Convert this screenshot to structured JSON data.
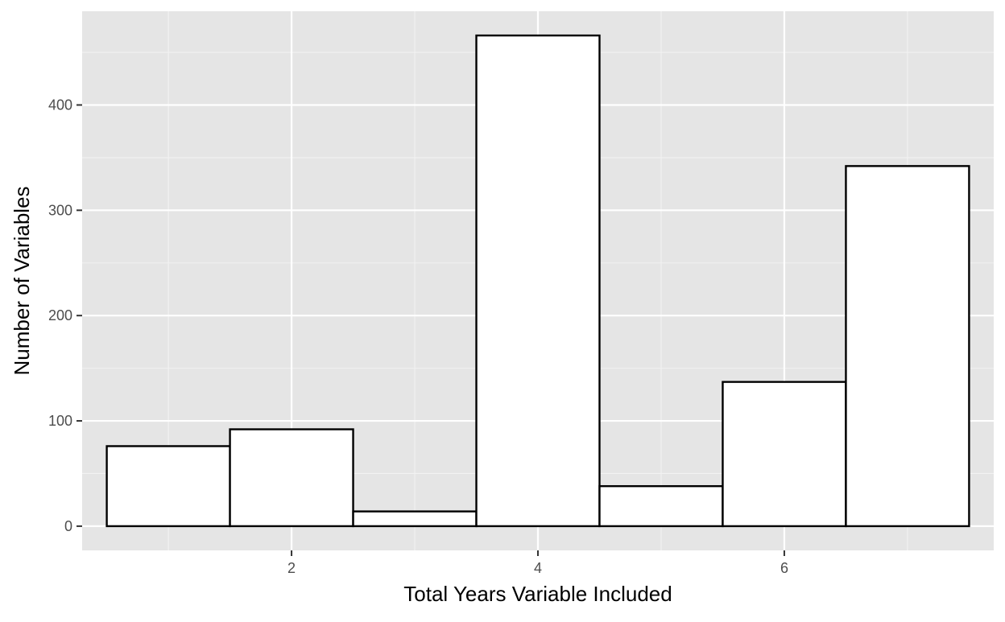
{
  "chart_data": {
    "type": "bar",
    "title": "",
    "xlabel": "Total Years Variable Included",
    "ylabel": "Number of Variables",
    "categories": [
      "1",
      "2",
      "3",
      "4",
      "5",
      "6",
      "7"
    ],
    "x": [
      1,
      2,
      3,
      4,
      5,
      6,
      7
    ],
    "values": [
      76,
      92,
      14,
      466,
      38,
      137,
      342
    ],
    "xlim": [
      0.3,
      7.7
    ],
    "ylim": [
      -23,
      489
    ],
    "x_ticks": [
      2,
      4,
      6
    ],
    "x_tick_labels": [
      "2",
      "4",
      "6"
    ],
    "y_ticks": [
      0,
      100,
      200,
      300,
      400
    ],
    "y_tick_labels": [
      "0",
      "100",
      "200",
      "300",
      "400"
    ],
    "grid": true,
    "legend": "none",
    "colors": {
      "panel_background": "#e5e5e5",
      "grid_major": "#ffffff",
      "grid_minor": "#f2f2f2",
      "bar_fill": "#ffffff",
      "bar_outline": "#000000",
      "tick_label": "#4d4d4d",
      "axis_title": "#000000"
    }
  }
}
